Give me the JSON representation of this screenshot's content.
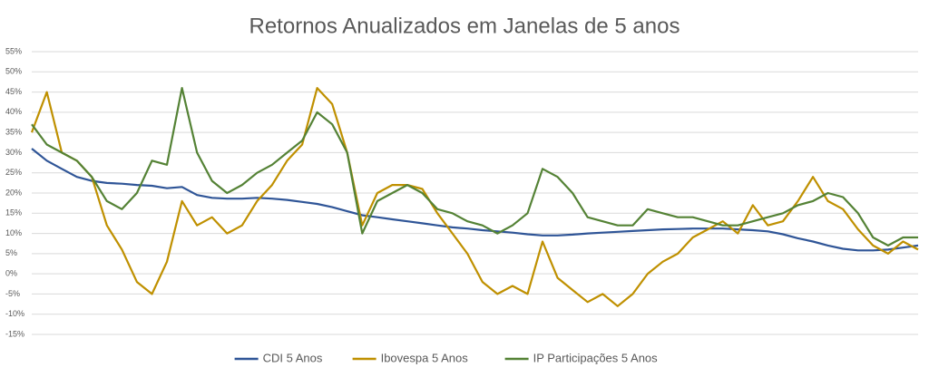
{
  "chart_data": {
    "type": "line",
    "title": "Retornos Anualizados em Janelas de 5 anos",
    "ylim": [
      -15,
      55
    ],
    "yticks": [
      {
        "value": -15,
        "label": "-15%"
      },
      {
        "value": -10,
        "label": "-10%"
      },
      {
        "value": -5,
        "label": "-5%"
      },
      {
        "value": 0,
        "label": "0%"
      },
      {
        "value": 5,
        "label": "5%"
      },
      {
        "value": 10,
        "label": "10%"
      },
      {
        "value": 15,
        "label": "15%"
      },
      {
        "value": 20,
        "label": "20%"
      },
      {
        "value": 25,
        "label": "25%"
      },
      {
        "value": 30,
        "label": "30%"
      },
      {
        "value": 35,
        "label": "35%"
      },
      {
        "value": 40,
        "label": "40%"
      },
      {
        "value": 45,
        "label": "45%"
      },
      {
        "value": 50,
        "label": "50%"
      },
      {
        "value": 55,
        "label": "55%"
      }
    ],
    "grid": true,
    "legend": "bottom",
    "series": [
      {
        "name": "CDI 5 Anos",
        "color": "#2f5597",
        "values": [
          31,
          28,
          26,
          24,
          23,
          22.5,
          22.3,
          22,
          21.8,
          21.2,
          21.5,
          19.5,
          18.8,
          18.6,
          18.6,
          18.8,
          18.6,
          18.3,
          17.8,
          17.3,
          16.5,
          15.5,
          14.5,
          14,
          13.5,
          13,
          12.5,
          12,
          11.5,
          11.2,
          10.8,
          10.5,
          10.2,
          9.8,
          9.5,
          9.5,
          9.7,
          10,
          10.2,
          10.4,
          10.6,
          10.8,
          11,
          11.1,
          11.2,
          11.2,
          11.2,
          11,
          10.8,
          10.5,
          9.8,
          8.8,
          8,
          7,
          6.2,
          5.8,
          5.8,
          6,
          6.5,
          7
        ]
      },
      {
        "name": "Ibovespa 5 Anos",
        "color": "#bf9000",
        "values": [
          35,
          45,
          30,
          28,
          24,
          12,
          6,
          -2,
          -5,
          3,
          18,
          12,
          14,
          10,
          12,
          18,
          22,
          28,
          32,
          46,
          42,
          30,
          12,
          20,
          22,
          22,
          21,
          15,
          10,
          5,
          -2,
          -5,
          -3,
          -5,
          8,
          -1,
          -4,
          -7,
          -5,
          -8,
          -5,
          0,
          3,
          5,
          9,
          11,
          13,
          10,
          17,
          12,
          13,
          18,
          24,
          18,
          16,
          11,
          7,
          5,
          8,
          6
        ]
      },
      {
        "name": "IP Participações 5 Anos",
        "color": "#548235",
        "values": [
          37,
          32,
          30,
          28,
          24,
          18,
          16,
          20,
          28,
          27,
          46,
          30,
          23,
          20,
          22,
          25,
          27,
          30,
          33,
          40,
          37,
          30,
          10,
          18,
          20,
          22,
          20,
          16,
          15,
          13,
          12,
          10,
          12,
          15,
          26,
          24,
          20,
          14,
          13,
          12,
          12,
          16,
          15,
          14,
          14,
          13,
          12,
          12,
          13,
          14,
          15,
          17,
          18,
          20,
          19,
          15,
          9,
          7,
          9,
          9
        ]
      }
    ]
  }
}
